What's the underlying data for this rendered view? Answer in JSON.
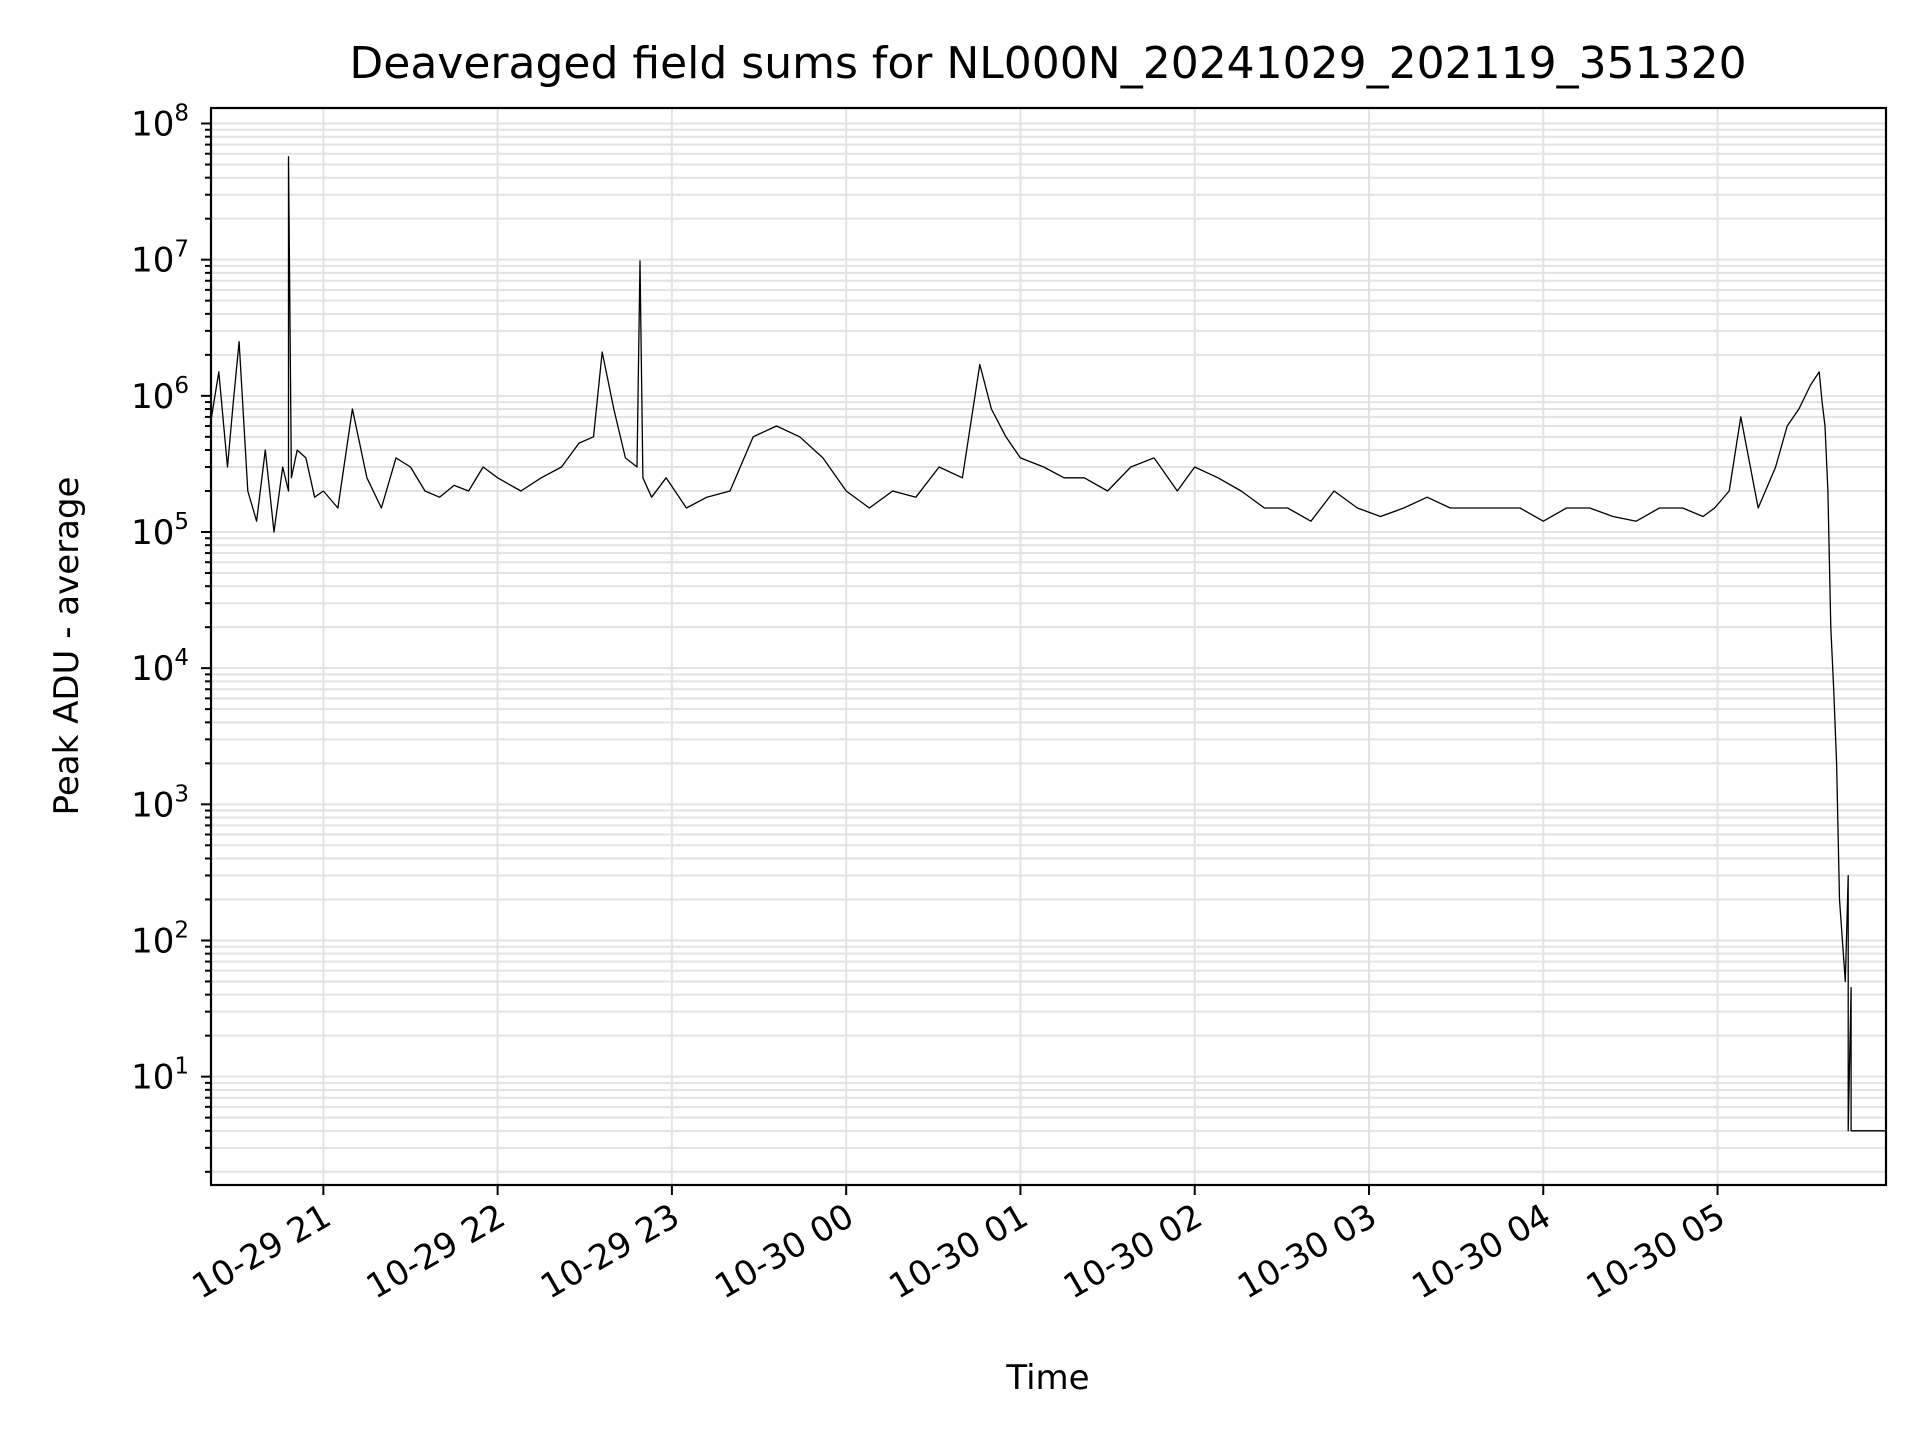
{
  "chart_data": {
    "type": "line",
    "title": "Deaveraged field sums for NL000N_20241029_202119_351320",
    "xlabel": "Time",
    "ylabel": "Peak ADU - average",
    "y_scale": "log",
    "ylim": [
      1.6,
      130000000
    ],
    "xlim": [
      "2024-10-29 20:21:19",
      "2024-10-30 05:58:00"
    ],
    "grid": true,
    "line_color": "#000000",
    "x_tick_labels": [
      "10-29 21",
      "10-29 22",
      "10-29 23",
      "10-30 00",
      "10-30 01",
      "10-30 02",
      "10-30 03",
      "10-30 04",
      "10-30 05"
    ],
    "x_tick_values": [
      "2024-10-29 21:00",
      "2024-10-29 22:00",
      "2024-10-29 23:00",
      "2024-10-30 00:00",
      "2024-10-30 01:00",
      "2024-10-30 02:00",
      "2024-10-30 03:00",
      "2024-10-30 04:00",
      "2024-10-30 05:00"
    ],
    "y_tick_labels": [
      {
        "base": "10",
        "exp": "1",
        "value": 10
      },
      {
        "base": "10",
        "exp": "2",
        "value": 100
      },
      {
        "base": "10",
        "exp": "3",
        "value": 1000
      },
      {
        "base": "10",
        "exp": "4",
        "value": 10000
      },
      {
        "base": "10",
        "exp": "5",
        "value": 100000
      },
      {
        "base": "10",
        "exp": "6",
        "value": 1000000
      },
      {
        "base": "10",
        "exp": "7",
        "value": 10000000
      },
      {
        "base": "10",
        "exp": "8",
        "value": 100000000
      }
    ],
    "series": [
      {
        "x": [
          "2024-10-29 20:21",
          "2024-10-29 20:24",
          "2024-10-29 20:27",
          "2024-10-29 20:29",
          "2024-10-29 20:31",
          "2024-10-29 20:34",
          "2024-10-29 20:37",
          "2024-10-29 20:40",
          "2024-10-29 20:43",
          "2024-10-29 20:46",
          "2024-10-29 20:48",
          "2024-10-29 20:48",
          "2024-10-29 20:49",
          "2024-10-29 20:51",
          "2024-10-29 20:54",
          "2024-10-29 20:57",
          "2024-10-29 21:00",
          "2024-10-29 21:05",
          "2024-10-29 21:10",
          "2024-10-29 21:15",
          "2024-10-29 21:20",
          "2024-10-29 21:25",
          "2024-10-29 21:30",
          "2024-10-29 21:35",
          "2024-10-29 21:40",
          "2024-10-29 21:45",
          "2024-10-29 21:50",
          "2024-10-29 21:55",
          "2024-10-29 22:00",
          "2024-10-29 22:08",
          "2024-10-29 22:15",
          "2024-10-29 22:22",
          "2024-10-29 22:28",
          "2024-10-29 22:33",
          "2024-10-29 22:36",
          "2024-10-29 22:40",
          "2024-10-29 22:44",
          "2024-10-29 22:48",
          "2024-10-29 22:49",
          "2024-10-29 22:50",
          "2024-10-29 22:53",
          "2024-10-29 22:58",
          "2024-10-29 23:05",
          "2024-10-29 23:12",
          "2024-10-29 23:20",
          "2024-10-29 23:28",
          "2024-10-29 23:36",
          "2024-10-29 23:44",
          "2024-10-29 23:52",
          "2024-10-30 00:00",
          "2024-10-30 00:08",
          "2024-10-30 00:16",
          "2024-10-30 00:24",
          "2024-10-30 00:32",
          "2024-10-30 00:40",
          "2024-10-30 00:46",
          "2024-10-30 00:50",
          "2024-10-30 00:55",
          "2024-10-30 01:00",
          "2024-10-30 01:08",
          "2024-10-30 01:15",
          "2024-10-30 01:22",
          "2024-10-30 01:30",
          "2024-10-30 01:38",
          "2024-10-30 01:46",
          "2024-10-30 01:54",
          "2024-10-30 02:00",
          "2024-10-30 02:08",
          "2024-10-30 02:16",
          "2024-10-30 02:24",
          "2024-10-30 02:32",
          "2024-10-30 02:40",
          "2024-10-30 02:48",
          "2024-10-30 02:56",
          "2024-10-30 03:04",
          "2024-10-30 03:12",
          "2024-10-30 03:20",
          "2024-10-30 03:28",
          "2024-10-30 03:36",
          "2024-10-30 03:44",
          "2024-10-30 03:52",
          "2024-10-30 04:00",
          "2024-10-30 04:08",
          "2024-10-30 04:16",
          "2024-10-30 04:24",
          "2024-10-30 04:32",
          "2024-10-30 04:40",
          "2024-10-30 04:48",
          "2024-10-30 04:55",
          "2024-10-30 04:59",
          "2024-10-30 05:04",
          "2024-10-30 05:08",
          "2024-10-30 05:14",
          "2024-10-30 05:20",
          "2024-10-30 05:24",
          "2024-10-30 05:28",
          "2024-10-30 05:32",
          "2024-10-30 05:35",
          "2024-10-30 05:36",
          "2024-10-30 05:37",
          "2024-10-30 05:38",
          "2024-10-30 05:39",
          "2024-10-30 05:40",
          "2024-10-30 05:41",
          "2024-10-30 05:42",
          "2024-10-30 05:44",
          "2024-10-30 05:45",
          "2024-10-30 05:45",
          "2024-10-30 05:46",
          "2024-10-30 05:46",
          "2024-10-30 05:47",
          "2024-10-30 05:50",
          "2024-10-30 05:55",
          "2024-10-30 05:58"
        ],
        "y": [
          600000,
          1500000,
          300000,
          900000,
          2500000,
          200000,
          120000,
          400000,
          100000,
          300000,
          200000,
          57000000,
          250000,
          400000,
          350000,
          180000,
          200000,
          150000,
          800000,
          250000,
          150000,
          350000,
          300000,
          200000,
          180000,
          220000,
          200000,
          300000,
          250000,
          200000,
          250000,
          300000,
          450000,
          500000,
          2100000,
          800000,
          350000,
          300000,
          9800000,
          250000,
          180000,
          250000,
          150000,
          180000,
          200000,
          500000,
          600000,
          500000,
          350000,
          200000,
          150000,
          200000,
          180000,
          300000,
          250000,
          1700000,
          800000,
          500000,
          350000,
          300000,
          250000,
          250000,
          200000,
          300000,
          350000,
          200000,
          300000,
          250000,
          200000,
          150000,
          150000,
          120000,
          200000,
          150000,
          130000,
          150000,
          180000,
          150000,
          150000,
          150000,
          150000,
          120000,
          150000,
          150000,
          130000,
          120000,
          150000,
          150000,
          130000,
          150000,
          200000,
          700000,
          150000,
          300000,
          600000,
          800000,
          1200000,
          1500000,
          900000,
          600000,
          200000,
          20000,
          7000,
          2000,
          200,
          50,
          300,
          4,
          45,
          4,
          4,
          4,
          4,
          4
        ]
      }
    ]
  }
}
